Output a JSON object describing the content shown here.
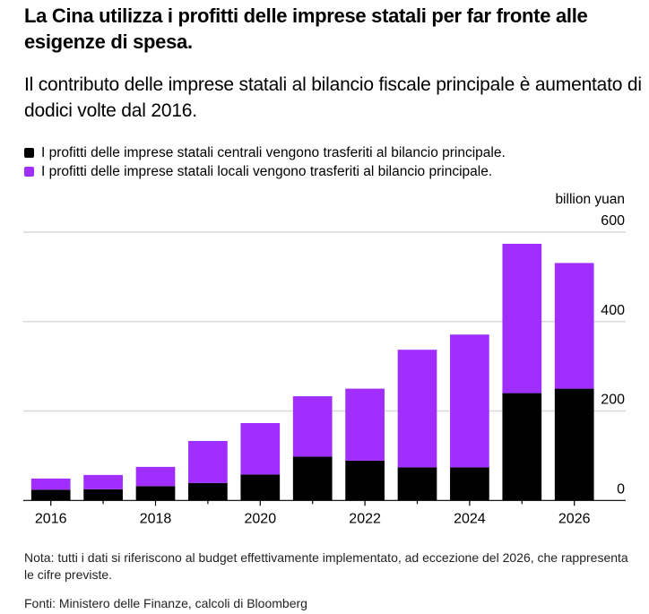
{
  "title": "La Cina utilizza i profitti delle imprese statali per far fronte alle esigenze di spesa.",
  "subtitle": "Il contributo delle imprese statali al bilancio fiscale principale è aumentato di dodici volte dal 2016.",
  "legend": [
    {
      "label": "I profitti delle imprese statali centrali vengono trasferiti al bilancio principale.",
      "color": "#000000"
    },
    {
      "label": "I profitti delle imprese statali locali vengono trasferiti al bilancio principale.",
      "color": "#A02EFF"
    }
  ],
  "unit_label": "billion yuan",
  "note": "Nota: tutti i dati si riferiscono al budget effettivamente implementato, ad eccezione del 2026, che rappresenta le cifre previste.",
  "source": "Fonti: Ministero delle Finanze, calcoli di Bloomberg",
  "chart_data": {
    "type": "bar",
    "stacked": true,
    "title": "La Cina utilizza i profitti delle imprese statali per far fronte alle esigenze di spesa.",
    "xlabel": "",
    "ylabel": "billion yuan",
    "ylim": [
      0,
      600
    ],
    "yticks": [
      0,
      200,
      400,
      600
    ],
    "y_axis_position": "right",
    "grid": true,
    "legend_position": "top-left",
    "categories": [
      "2016",
      "2017",
      "2018",
      "2019",
      "2020",
      "2021",
      "2022",
      "2023",
      "2024",
      "2025",
      "2026"
    ],
    "xtick_labels": [
      "2016",
      "",
      "2018",
      "",
      "2020",
      "",
      "2022",
      "",
      "2024",
      "",
      "2026"
    ],
    "series": [
      {
        "name": "I profitti delle imprese statali centrali vengono trasferiti al bilancio principale.",
        "color": "#000000",
        "values": [
          24,
          25,
          32,
          39,
          58,
          98,
          89,
          74,
          74,
          240,
          250
        ]
      },
      {
        "name": "I profitti delle imprese statali locali vengono trasferiti al bilancio principale.",
        "color": "#A02EFF",
        "values": [
          25,
          32,
          43,
          94,
          115,
          135,
          161,
          263,
          297,
          334,
          281
        ]
      }
    ]
  }
}
